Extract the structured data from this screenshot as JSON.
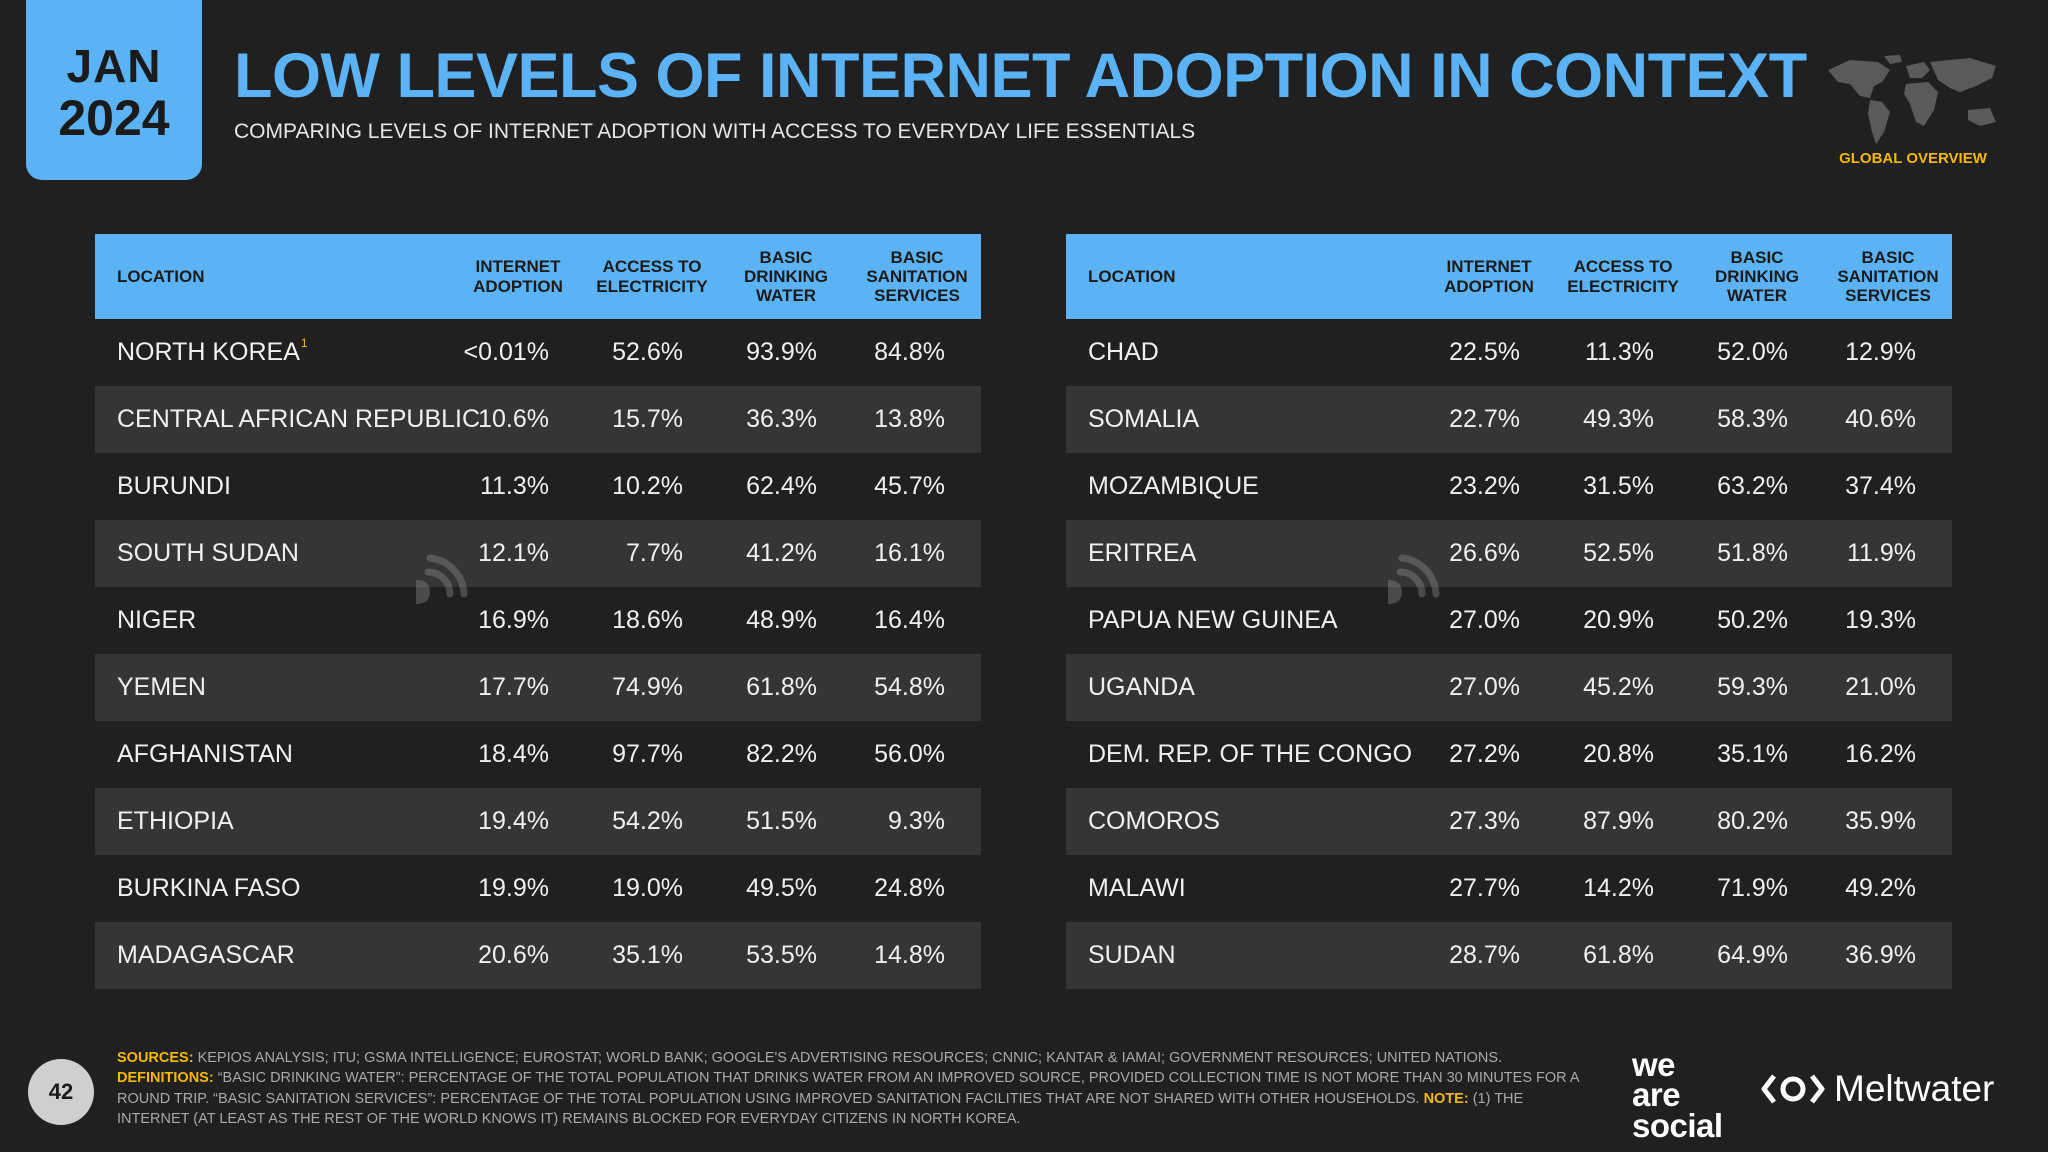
{
  "badge": {
    "month": "JAN",
    "year": "2024"
  },
  "title": "LOW LEVELS OF INTERNET ADOPTION IN CONTEXT",
  "subtitle": "COMPARING LEVELS OF INTERNET ADOPTION WITH ACCESS TO EVERYDAY LIFE ESSENTIALS",
  "overview_label": "GLOBAL OVERVIEW",
  "columns": {
    "location": "LOCATION",
    "internet": [
      "INTERNET",
      "ADOPTION"
    ],
    "electricity": [
      "ACCESS TO",
      "ELECTRICITY"
    ],
    "water": [
      "BASIC",
      "DRINKING",
      "WATER"
    ],
    "sanitation": [
      "BASIC",
      "SANITATION",
      "SERVICES"
    ]
  },
  "left_rows": [
    {
      "location": "NORTH KOREA",
      "note": "1",
      "internet": "<0.01%",
      "electricity": "52.6%",
      "water": "93.9%",
      "sanitation": "84.8%"
    },
    {
      "location": "CENTRAL AFRICAN REPUBLIC",
      "note": "",
      "internet": "10.6%",
      "electricity": "15.7%",
      "water": "36.3%",
      "sanitation": "13.8%"
    },
    {
      "location": "BURUNDI",
      "note": "",
      "internet": "11.3%",
      "electricity": "10.2%",
      "water": "62.4%",
      "sanitation": "45.7%"
    },
    {
      "location": "SOUTH SUDAN",
      "note": "",
      "internet": "12.1%",
      "electricity": "7.7%",
      "water": "41.2%",
      "sanitation": "16.1%"
    },
    {
      "location": "NIGER",
      "note": "",
      "internet": "16.9%",
      "electricity": "18.6%",
      "water": "48.9%",
      "sanitation": "16.4%"
    },
    {
      "location": "YEMEN",
      "note": "",
      "internet": "17.7%",
      "electricity": "74.9%",
      "water": "61.8%",
      "sanitation": "54.8%"
    },
    {
      "location": "AFGHANISTAN",
      "note": "",
      "internet": "18.4%",
      "electricity": "97.7%",
      "water": "82.2%",
      "sanitation": "56.0%"
    },
    {
      "location": "ETHIOPIA",
      "note": "",
      "internet": "19.4%",
      "electricity": "54.2%",
      "water": "51.5%",
      "sanitation": "9.3%"
    },
    {
      "location": "BURKINA FASO",
      "note": "",
      "internet": "19.9%",
      "electricity": "19.0%",
      "water": "49.5%",
      "sanitation": "24.8%"
    },
    {
      "location": "MADAGASCAR",
      "note": "",
      "internet": "20.6%",
      "electricity": "35.1%",
      "water": "53.5%",
      "sanitation": "14.8%"
    }
  ],
  "right_rows": [
    {
      "location": "CHAD",
      "note": "",
      "internet": "22.5%",
      "electricity": "11.3%",
      "water": "52.0%",
      "sanitation": "12.9%"
    },
    {
      "location": "SOMALIA",
      "note": "",
      "internet": "22.7%",
      "electricity": "49.3%",
      "water": "58.3%",
      "sanitation": "40.6%"
    },
    {
      "location": "MOZAMBIQUE",
      "note": "",
      "internet": "23.2%",
      "electricity": "31.5%",
      "water": "63.2%",
      "sanitation": "37.4%"
    },
    {
      "location": "ERITREA",
      "note": "",
      "internet": "26.6%",
      "electricity": "52.5%",
      "water": "51.8%",
      "sanitation": "11.9%"
    },
    {
      "location": "PAPUA NEW GUINEA",
      "note": "",
      "internet": "27.0%",
      "electricity": "20.9%",
      "water": "50.2%",
      "sanitation": "19.3%"
    },
    {
      "location": "UGANDA",
      "note": "",
      "internet": "27.0%",
      "electricity": "45.2%",
      "water": "59.3%",
      "sanitation": "21.0%"
    },
    {
      "location": "DEM. REP. OF THE CONGO",
      "note": "",
      "internet": "27.2%",
      "electricity": "20.8%",
      "water": "35.1%",
      "sanitation": "16.2%"
    },
    {
      "location": "COMOROS",
      "note": "",
      "internet": "27.3%",
      "electricity": "87.9%",
      "water": "80.2%",
      "sanitation": "35.9%"
    },
    {
      "location": "MALAWI",
      "note": "",
      "internet": "27.7%",
      "electricity": "14.2%",
      "water": "71.9%",
      "sanitation": "49.2%"
    },
    {
      "location": "SUDAN",
      "note": "",
      "internet": "28.7%",
      "electricity": "61.8%",
      "water": "64.9%",
      "sanitation": "36.9%"
    }
  ],
  "footer": {
    "page_number": "42",
    "sources_label": "SOURCES:",
    "sources_text": "KEPIOS ANALYSIS; ITU; GSMA INTELLIGENCE; EUROSTAT; WORLD BANK; GOOGLE'S ADVERTISING RESOURCES; CNNIC; KANTAR & IAMAI; GOVERNMENT RESOURCES; UNITED NATIONS.",
    "definitions_label": "DEFINITIONS:",
    "definitions_text": "“BASIC DRINKING WATER”: PERCENTAGE OF THE TOTAL POPULATION THAT DRINKS WATER FROM AN IMPROVED SOURCE, PROVIDED COLLECTION TIME IS NOT MORE THAN 30 MINUTES FOR A ROUND TRIP. “BASIC SANITATION SERVICES”: PERCENTAGE OF THE TOTAL POPULATION USING IMPROVED SANITATION FACILITIES THAT ARE NOT SHARED WITH OTHER HOUSEHOLDS.",
    "note_label": "NOTE:",
    "note_text": "(1) THE INTERNET (AT LEAST AS THE REST OF THE WORLD KNOWS IT) REMAINS BLOCKED FOR EVERYDAY CITIZENS IN NORTH KOREA."
  },
  "brands": {
    "we_are_social": [
      "we",
      "are",
      "social"
    ],
    "meltwater": "Meltwater"
  },
  "colors": {
    "accent": "#5bb3f5",
    "background": "#202020",
    "row_alt": "#353535",
    "highlight": "#f5b800"
  },
  "icons": [
    "world-map-icon",
    "datareportal-watermark-icon",
    "meltwater-logo-icon"
  ]
}
